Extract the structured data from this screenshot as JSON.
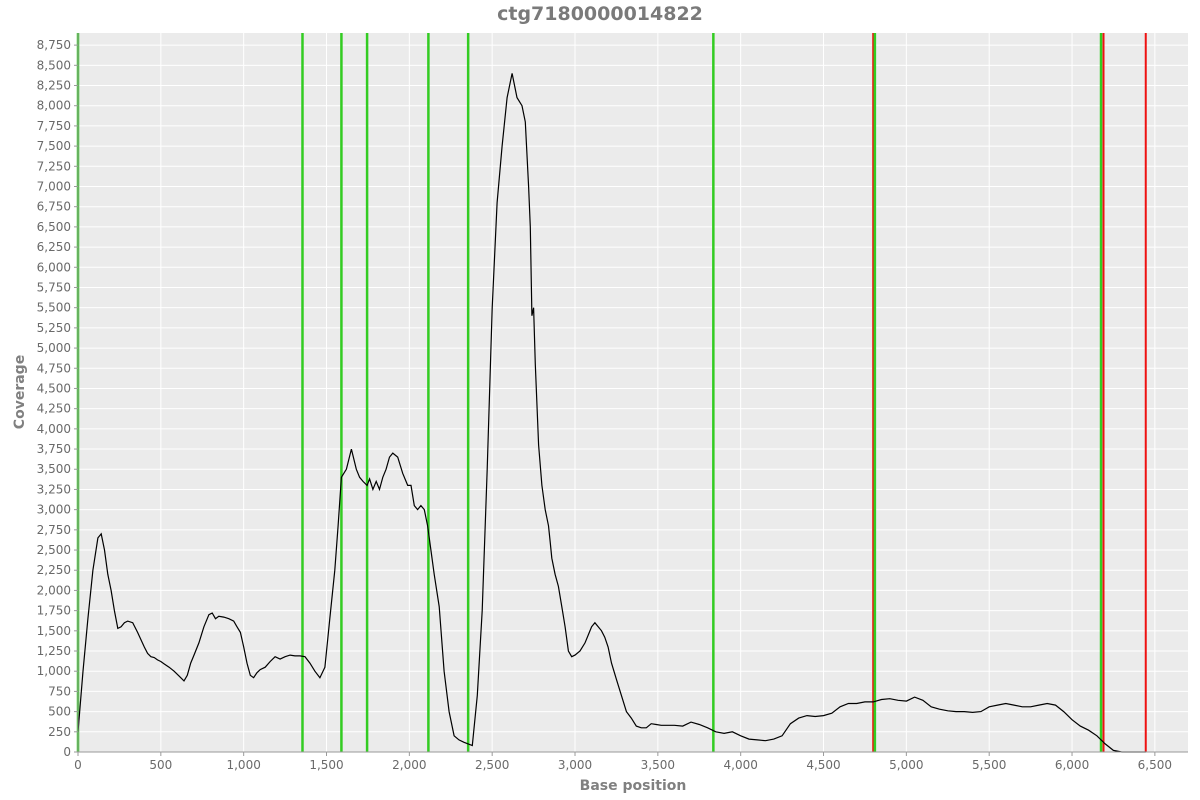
{
  "chart_data": {
    "type": "line",
    "title": "ctg7180000014822",
    "xlabel": "Base position",
    "ylabel": "Coverage",
    "xlim": [
      0,
      6700
    ],
    "ylim": [
      0,
      8900
    ],
    "x_ticks": [
      0,
      500,
      1000,
      1500,
      2000,
      2500,
      3000,
      3500,
      4000,
      4500,
      5000,
      5500,
      6000,
      6500
    ],
    "x_tick_labels": [
      "0",
      "500",
      "1,000",
      "1,500",
      "2,000",
      "2,500",
      "3,000",
      "3,500",
      "4,000",
      "4,500",
      "5,000",
      "5,500",
      "6,000",
      "6,500"
    ],
    "y_ticks": [
      0,
      250,
      500,
      750,
      1000,
      1250,
      1500,
      1750,
      2000,
      2250,
      2500,
      2750,
      3000,
      3250,
      3500,
      3750,
      4000,
      4250,
      4500,
      4750,
      5000,
      5250,
      5500,
      5750,
      6000,
      6250,
      6500,
      6750,
      7000,
      7250,
      7500,
      7750,
      8000,
      8250,
      8500,
      8750
    ],
    "y_tick_labels": [
      "0",
      "250",
      "500",
      "750",
      "1,000",
      "1,250",
      "1,500",
      "1,750",
      "2,000",
      "2,250",
      "2,500",
      "2,750",
      "3,000",
      "3,250",
      "3,500",
      "3,750",
      "4,000",
      "4,250",
      "4,500",
      "4,750",
      "5,000",
      "5,250",
      "5,500",
      "5,750",
      "6,000",
      "6,250",
      "6,500",
      "6,750",
      "7,000",
      "7,250",
      "7,500",
      "7,750",
      "8,000",
      "8,250",
      "8,500",
      "8,750"
    ],
    "grid": true,
    "background_color": "#ebebeb",
    "grid_color": "#ffffff",
    "line_color": "#000000",
    "green_markers": [
      0,
      1355,
      1590,
      1745,
      2115,
      2355,
      3835,
      4810,
      6175
    ],
    "green_color": "#33cc22",
    "red_markers": [
      4800,
      6190,
      6445
    ],
    "red_color": "#ee1111",
    "series": [
      {
        "x": [
          0,
          30,
          60,
          90,
          120,
          140,
          160,
          180,
          200,
          220,
          240,
          260,
          280,
          300,
          330,
          360,
          400,
          420,
          440,
          460,
          480,
          500,
          520,
          550,
          580,
          610,
          640,
          660,
          680,
          700,
          730,
          760,
          790,
          810,
          830,
          850,
          880,
          910,
          940,
          960,
          980,
          1000,
          1020,
          1040,
          1060,
          1080,
          1100,
          1130,
          1160,
          1190,
          1220,
          1250,
          1280,
          1310,
          1340,
          1370,
          1400,
          1430,
          1460,
          1490,
          1520,
          1550,
          1570,
          1590,
          1620,
          1650,
          1680,
          1700,
          1720,
          1745,
          1760,
          1780,
          1800,
          1820,
          1840,
          1860,
          1880,
          1900,
          1930,
          1960,
          1990,
          2010,
          2030,
          2050,
          2070,
          2090,
          2110,
          2130,
          2150,
          2180,
          2210,
          2240,
          2270,
          2300,
          2330,
          2355,
          2380,
          2410,
          2440,
          2470,
          2500,
          2530,
          2560,
          2590,
          2620,
          2650,
          2680,
          2700,
          2720,
          2730,
          2740,
          2750,
          2760,
          2780,
          2800,
          2820,
          2840,
          2850,
          2860,
          2880,
          2900,
          2920,
          2940,
          2960,
          2980,
          3000,
          3030,
          3060,
          3080,
          3100,
          3120,
          3140,
          3160,
          3180,
          3200,
          3220,
          3250,
          3280,
          3310,
          3340,
          3370,
          3400,
          3430,
          3460,
          3490,
          3520,
          3550,
          3600,
          3650,
          3700,
          3750,
          3800,
          3850,
          3900,
          3950,
          4000,
          4050,
          4100,
          4150,
          4200,
          4250,
          4300,
          4350,
          4400,
          4450,
          4500,
          4550,
          4600,
          4650,
          4700,
          4750,
          4800,
          4850,
          4900,
          4950,
          5000,
          5050,
          5100,
          5150,
          5200,
          5250,
          5300,
          5350,
          5400,
          5450,
          5500,
          5550,
          5600,
          5650,
          5700,
          5750,
          5800,
          5850,
          5900,
          5950,
          6000,
          6050,
          6100,
          6150,
          6200,
          6250,
          6300,
          6350,
          6400,
          6445
        ],
        "y": [
          250,
          1000,
          1650,
          2250,
          2650,
          2700,
          2500,
          2200,
          2000,
          1750,
          1530,
          1550,
          1600,
          1620,
          1600,
          1480,
          1300,
          1220,
          1180,
          1170,
          1140,
          1120,
          1090,
          1050,
          1000,
          940,
          880,
          950,
          1100,
          1200,
          1350,
          1550,
          1700,
          1720,
          1650,
          1680,
          1670,
          1650,
          1620,
          1550,
          1480,
          1300,
          1100,
          950,
          920,
          980,
          1020,
          1050,
          1120,
          1180,
          1150,
          1180,
          1200,
          1190,
          1190,
          1180,
          1100,
          1000,
          920,
          1050,
          1650,
          2250,
          2800,
          3400,
          3500,
          3750,
          3500,
          3400,
          3350,
          3300,
          3380,
          3250,
          3350,
          3250,
          3400,
          3500,
          3650,
          3700,
          3650,
          3450,
          3300,
          3300,
          3050,
          3000,
          3050,
          3000,
          2800,
          2500,
          2200,
          1800,
          1000,
          500,
          200,
          150,
          120,
          100,
          80,
          700,
          1750,
          3500,
          5500,
          6800,
          7500,
          8100,
          8400,
          8100,
          8000,
          7800,
          7000,
          6500,
          5400,
          5500,
          4800,
          3800,
          3300,
          3000,
          2800,
          2600,
          2400,
          2200,
          2050,
          1800,
          1550,
          1250,
          1180,
          1200,
          1250,
          1350,
          1450,
          1550,
          1600,
          1550,
          1500,
          1420,
          1300,
          1100,
          900,
          700,
          500,
          420,
          320,
          300,
          300,
          350,
          340,
          330,
          330,
          330,
          320,
          370,
          340,
          300,
          250,
          230,
          250,
          200,
          160,
          150,
          140,
          160,
          200,
          350,
          420,
          450,
          440,
          450,
          480,
          560,
          600,
          600,
          620,
          620,
          650,
          660,
          640,
          630,
          680,
          640,
          560,
          530,
          510,
          500,
          500,
          490,
          500,
          560,
          580,
          600,
          580,
          560,
          560,
          580,
          600,
          580,
          500,
          400,
          320,
          270,
          200,
          100,
          20,
          0,
          0,
          0,
          0
        ]
      }
    ]
  }
}
